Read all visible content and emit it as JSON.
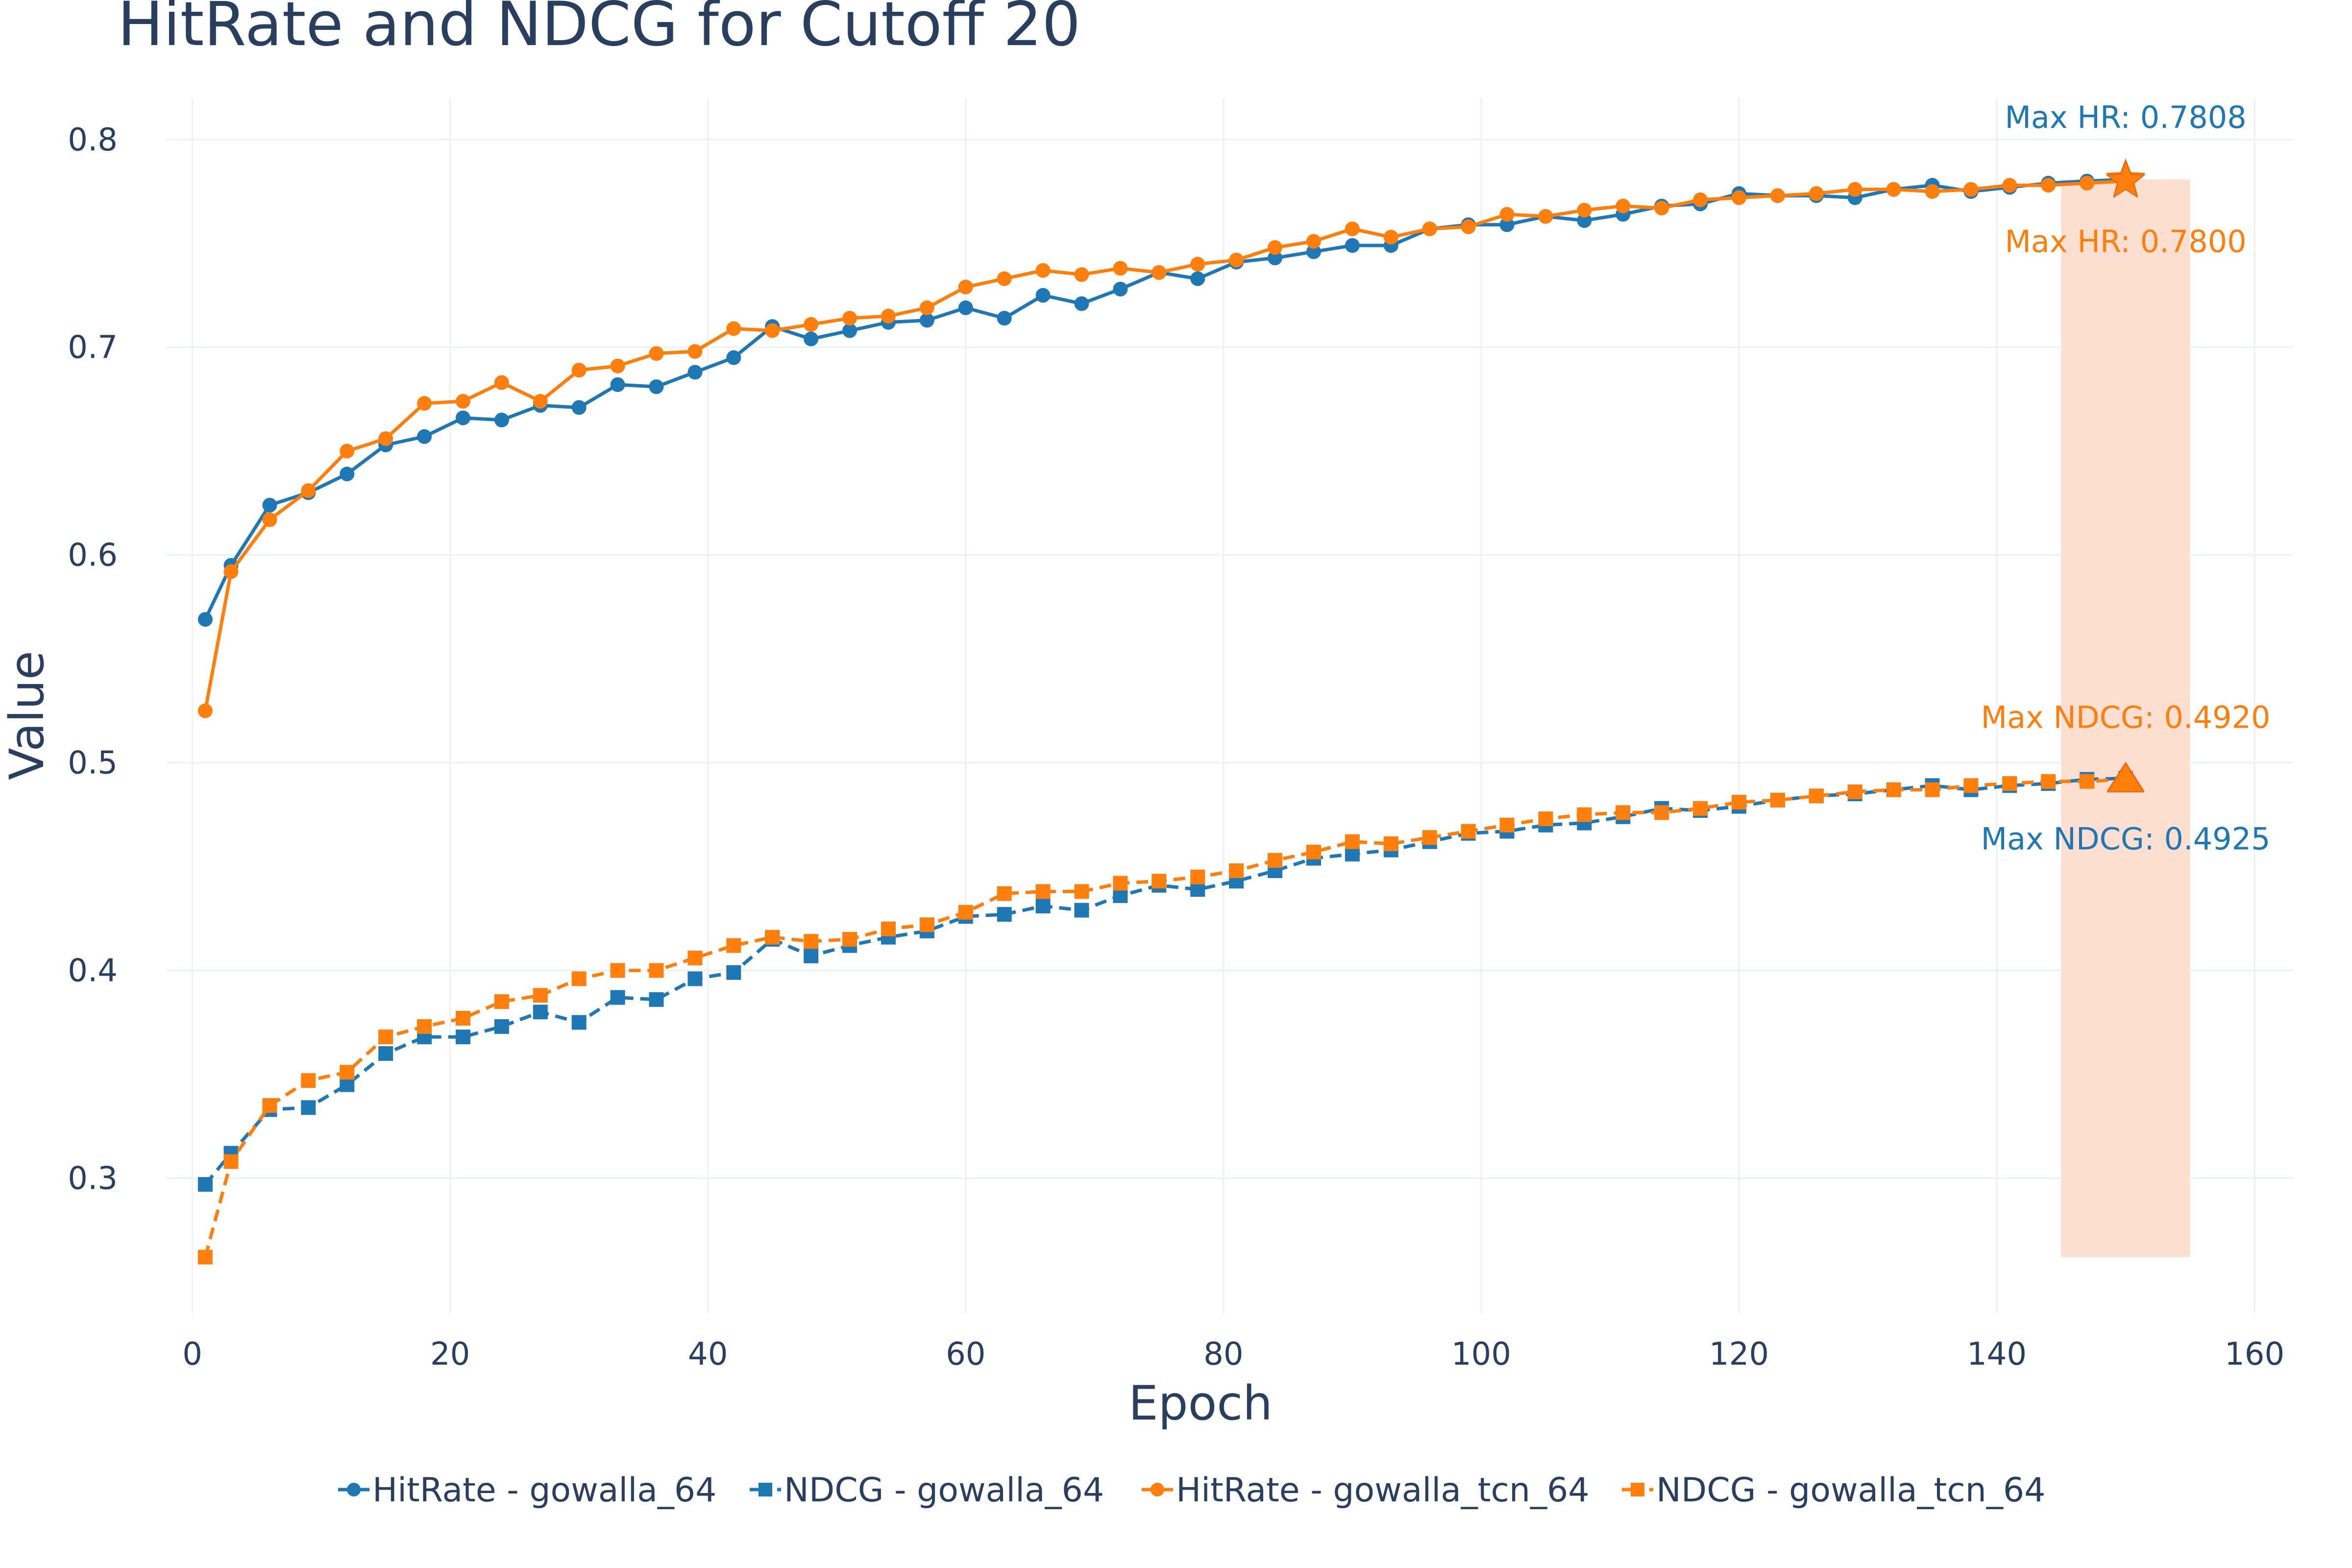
{
  "chart_data": {
    "type": "line",
    "title": "HitRate and NDCG for Cutoff 20",
    "xlabel": "Epoch",
    "ylabel": "Value",
    "xlim": [
      -2,
      163
    ],
    "ylim": [
      0.235,
      0.82
    ],
    "xticks": [
      0,
      20,
      40,
      60,
      80,
      100,
      120,
      140,
      160
    ],
    "yticks": [
      0.3,
      0.4,
      0.5,
      0.6,
      0.7,
      0.8
    ],
    "grid": true,
    "legend_position": "bottom",
    "x": [
      1,
      3,
      6,
      9,
      12,
      15,
      18,
      21,
      24,
      27,
      30,
      33,
      36,
      39,
      42,
      45,
      48,
      51,
      54,
      57,
      60,
      63,
      66,
      69,
      72,
      75,
      78,
      81,
      84,
      87,
      90,
      93,
      96,
      99,
      102,
      105,
      108,
      111,
      114,
      117,
      120,
      123,
      126,
      129,
      132,
      135,
      138,
      141,
      144,
      147,
      150
    ],
    "series": [
      {
        "name": "HitRate - gowalla_64",
        "color": "#1f77b4",
        "dash": "solid",
        "marker": "circle",
        "values": [
          0.569,
          0.595,
          0.624,
          0.63,
          0.639,
          0.653,
          0.657,
          0.666,
          0.665,
          0.672,
          0.671,
          0.682,
          0.681,
          0.688,
          0.695,
          0.71,
          0.704,
          0.708,
          0.712,
          0.713,
          0.719,
          0.714,
          0.725,
          0.721,
          0.728,
          0.736,
          0.733,
          0.741,
          0.743,
          0.746,
          0.749,
          0.749,
          0.757,
          0.759,
          0.759,
          0.763,
          0.761,
          0.764,
          0.768,
          0.769,
          0.774,
          0.773,
          0.773,
          0.772,
          0.776,
          0.778,
          0.775,
          0.777,
          0.779,
          0.78,
          0.7808
        ]
      },
      {
        "name": "NDCG - gowalla_64",
        "color": "#1f77b4",
        "dash": "dashed",
        "marker": "square",
        "values": [
          0.297,
          0.312,
          0.333,
          0.334,
          0.345,
          0.36,
          0.368,
          0.368,
          0.373,
          0.38,
          0.375,
          0.387,
          0.386,
          0.396,
          0.399,
          0.415,
          0.407,
          0.412,
          0.416,
          0.419,
          0.426,
          0.427,
          0.431,
          0.429,
          0.436,
          0.441,
          0.439,
          0.443,
          0.448,
          0.454,
          0.456,
          0.458,
          0.462,
          0.466,
          0.467,
          0.47,
          0.471,
          0.474,
          0.478,
          0.477,
          0.479,
          0.482,
          0.484,
          0.485,
          0.487,
          0.489,
          0.487,
          0.489,
          0.49,
          0.492,
          0.4925
        ]
      },
      {
        "name": "HitRate - gowalla_tcn_64",
        "color": "#ff7f0e",
        "dash": "solid",
        "marker": "circle",
        "values": [
          0.525,
          0.592,
          0.617,
          0.631,
          0.65,
          0.656,
          0.673,
          0.674,
          0.683,
          0.674,
          0.689,
          0.691,
          0.697,
          0.698,
          0.709,
          0.708,
          0.711,
          0.714,
          0.715,
          0.719,
          0.729,
          0.733,
          0.737,
          0.735,
          0.738,
          0.736,
          0.74,
          0.742,
          0.748,
          0.751,
          0.757,
          0.753,
          0.757,
          0.758,
          0.764,
          0.763,
          0.766,
          0.768,
          0.767,
          0.771,
          0.772,
          0.773,
          0.774,
          0.776,
          0.776,
          0.775,
          0.776,
          0.778,
          0.778,
          0.779,
          0.78
        ]
      },
      {
        "name": "NDCG - gowalla_tcn_64",
        "color": "#ff7f0e",
        "dash": "dashed",
        "marker": "square",
        "values": [
          0.262,
          0.308,
          0.335,
          0.347,
          0.351,
          0.368,
          0.373,
          0.377,
          0.385,
          0.388,
          0.396,
          0.4,
          0.4,
          0.406,
          0.412,
          0.416,
          0.414,
          0.415,
          0.42,
          0.422,
          0.428,
          0.437,
          0.438,
          0.438,
          0.442,
          0.443,
          0.445,
          0.448,
          0.453,
          0.457,
          0.462,
          0.461,
          0.464,
          0.467,
          0.47,
          0.473,
          0.475,
          0.476,
          0.476,
          0.478,
          0.481,
          0.482,
          0.484,
          0.486,
          0.487,
          0.487,
          0.489,
          0.49,
          0.491,
          0.491,
          0.492
        ]
      }
    ],
    "highlight_region": {
      "x": [
        145,
        155
      ],
      "y": [
        0.262,
        0.7808
      ],
      "color": "#ffdfd2"
    },
    "max_markers": [
      {
        "series": "HitRate - gowalla_64",
        "x": 150,
        "y": 0.7808,
        "symbol": "star",
        "color": "#ff7f0e"
      },
      {
        "series": "HitRate - gowalla_tcn_64",
        "x": 150,
        "y": 0.78,
        "symbol": "star",
        "color": "#ff7f0e"
      },
      {
        "series": "NDCG - gowalla_64",
        "x": 150,
        "y": 0.4925,
        "symbol": "triangle",
        "color": "#ff7f0e"
      },
      {
        "series": "NDCG - gowalla_tcn_64",
        "x": 150,
        "y": 0.492,
        "symbol": "triangle",
        "color": "#ff7f0e"
      }
    ],
    "annotations": [
      {
        "text": "Max HR: 0.7808",
        "x": 150,
        "y": 0.7808,
        "position": "above",
        "color": "#1f77b4"
      },
      {
        "text": "Max HR: 0.7800",
        "x": 150,
        "y": 0.78,
        "position": "below",
        "color": "#ff7f0e"
      },
      {
        "text": "Max NDCG: 0.4920",
        "x": 150,
        "y": 0.492,
        "position": "above",
        "color": "#ff7f0e"
      },
      {
        "text": "Max NDCG: 0.4925",
        "x": 150,
        "y": 0.4925,
        "position": "below",
        "color": "#1f77b4"
      }
    ]
  }
}
